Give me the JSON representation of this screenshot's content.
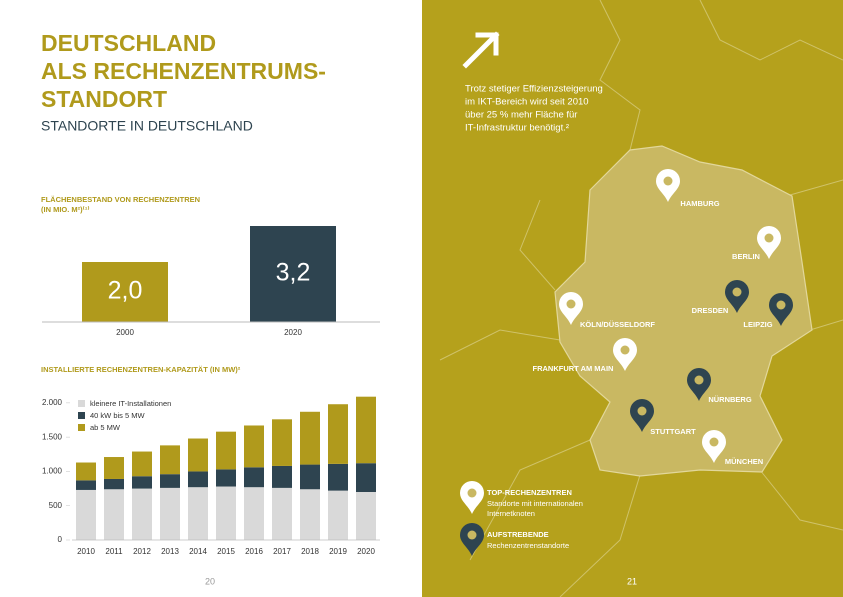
{
  "left_page": {
    "title_lines": [
      "DEUTSCHLAND",
      "ALS RECHENZENTRUMS-",
      "STANDORT"
    ],
    "subtitle": "STANDORTE IN DEUTSCHLAND",
    "page_number": "20"
  },
  "chart_data": [
    {
      "type": "bar",
      "title": "FLÄCHENBESTAND VON RECHENZENTREN",
      "subtitle": "(IN MIO. M²)⁽¹⁾",
      "categories": [
        "2000",
        "2020"
      ],
      "values": [
        2.0,
        3.2
      ],
      "value_labels": [
        "2,0",
        "3,2"
      ],
      "colors": [
        "#b09a1c",
        "#2e4450"
      ]
    },
    {
      "type": "stacked_bar",
      "title": "INSTALLIERTE RECHENZENTREN-KAPAZITÄT (IN MW)²",
      "categories": [
        "2010",
        "2011",
        "2012",
        "2013",
        "2014",
        "2015",
        "2016",
        "2017",
        "2018",
        "2019",
        "2020"
      ],
      "series": [
        {
          "name": "kleinere IT-Installationen",
          "color": "#d9d9d9",
          "values": [
            730,
            740,
            750,
            760,
            770,
            780,
            770,
            760,
            740,
            720,
            700
          ]
        },
        {
          "name": "40 kW bis 5 MW",
          "color": "#2e4450",
          "values": [
            140,
            150,
            180,
            200,
            230,
            250,
            290,
            320,
            360,
            390,
            420
          ]
        },
        {
          "name": "ab 5 MW",
          "color": "#b09a1c",
          "values": [
            260,
            320,
            360,
            420,
            480,
            550,
            610,
            680,
            770,
            870,
            970
          ]
        }
      ],
      "ylim": [
        0,
        2100
      ],
      "yticks": [
        0,
        500,
        {
          "value": 1000,
          "label": "1.000"
        },
        {
          "value": 1500,
          "label": "1.500"
        },
        {
          "value": 2000,
          "label": "2.000"
        }
      ]
    }
  ],
  "right_page": {
    "text_lines": [
      "Trotz stetiger Effizienzsteigerung",
      "im IKT-Bereich wird seit 2010",
      "über 25 % mehr Fläche für",
      "IT-Infrastruktur benötigt.²"
    ],
    "cities": [
      {
        "label": "HAMBURG",
        "group": 0
      },
      {
        "label": "BERLIN",
        "group": 0
      },
      {
        "label": "KÖLN/DÜSSELDORF",
        "group": 0
      },
      {
        "label": "FRANKFURT AM MAIN",
        "group": 0
      },
      {
        "label": "DRESDEN",
        "group": 1
      },
      {
        "label": "LEIPZIG",
        "group": 1
      },
      {
        "label": "NÜRNBERG",
        "group": 1
      },
      {
        "label": "STUTTGART",
        "group": 1
      },
      {
        "label": "MÜNCHEN",
        "group": 0
      }
    ],
    "legend": [
      {
        "title": "TOP-RECHENZENTREN",
        "lines": [
          "Standorte mit internationalen",
          "Internetknoten"
        ],
        "color": "#ffffff"
      },
      {
        "title": "AUFSTREBENDE",
        "lines": [
          "Rechenzentrenstandorte"
        ],
        "color": "#2e4450"
      }
    ],
    "page_number": "21"
  }
}
